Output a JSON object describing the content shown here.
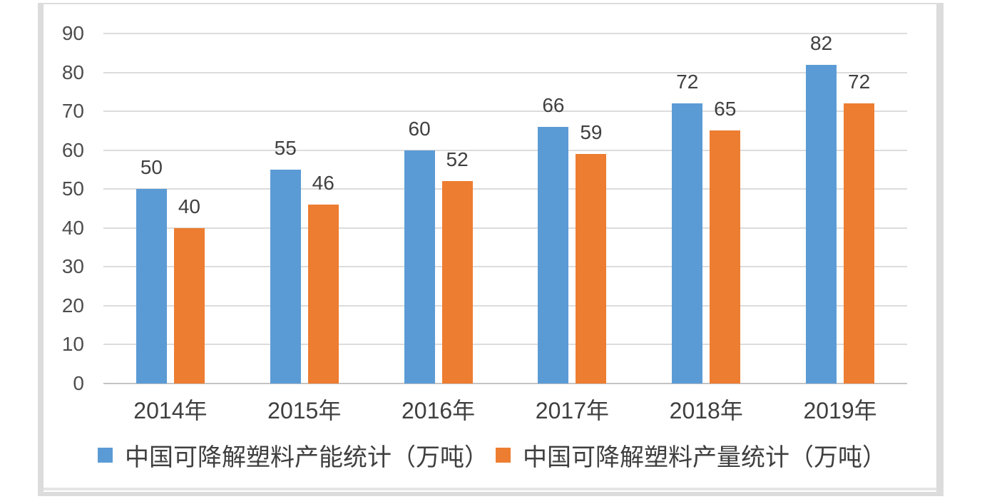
{
  "chart_data": {
    "type": "bar",
    "categories": [
      "2014年",
      "2015年",
      "2016年",
      "2017年",
      "2018年",
      "2019年"
    ],
    "series": [
      {
        "name": "中国可降解塑料产能统计（万吨）",
        "color": "#5B9BD5",
        "values": [
          50,
          55,
          60,
          66,
          72,
          82
        ]
      },
      {
        "name": "中国可降解塑料产量统计（万吨）",
        "color": "#ED7D31",
        "values": [
          40,
          46,
          52,
          59,
          65,
          72
        ]
      }
    ],
    "title": "",
    "xlabel": "",
    "ylabel": "",
    "ylim": [
      0,
      90
    ],
    "yticks": [
      0,
      10,
      20,
      30,
      40,
      50,
      60,
      70,
      80,
      90
    ],
    "grid": true,
    "legend_position": "bottom",
    "data_labels": true
  },
  "colors": {
    "grid": "#dcdcdc",
    "axis": "#c3c3c3",
    "text": "#404040",
    "frame": "#dcdcdc"
  }
}
